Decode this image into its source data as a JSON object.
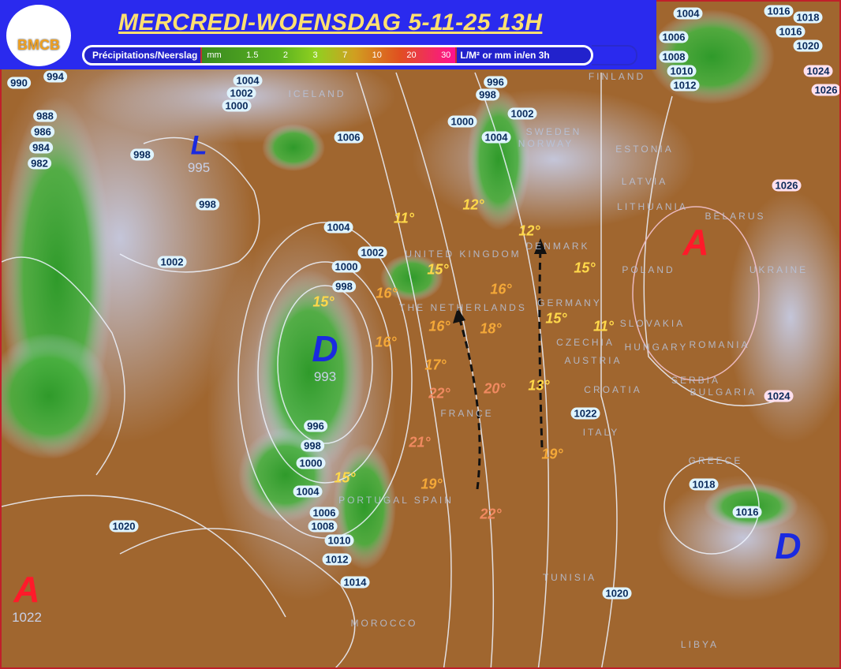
{
  "header": {
    "logo_text": "BMCB",
    "title": "MERCREDI-WOENSDAG  5-11-25  13H"
  },
  "legend": {
    "label": "Précipitations/Neerslag",
    "unit": "mm",
    "ticks": [
      "1.5",
      "2",
      "3",
      "7",
      "10",
      "20",
      "30"
    ],
    "suffix": "L/M² or mm in/en 3h",
    "colors": [
      "#3a8a20",
      "#58b020",
      "#90d020",
      "#d0a020",
      "#e05020",
      "#ff1090"
    ]
  },
  "colors": {
    "land": "#a0662f",
    "precip": "#3aa030",
    "cloud": "#c8d0ec",
    "high": "#ff1a2a",
    "low": "#1a2ae0"
  },
  "isobars": [
    "1004",
    "1002",
    "1000",
    "990",
    "994",
    "998",
    "998",
    "1002",
    "1006",
    "1004",
    "1002",
    "1000",
    "998",
    "996",
    "998",
    "1000",
    "1004",
    "1006",
    "1008",
    "1010",
    "1012",
    "1014",
    "1020",
    "996",
    "998",
    "1000",
    "1002",
    "1004",
    "1004",
    "1006",
    "1008",
    "1010",
    "1012",
    "1016",
    "1016",
    "1018",
    "1020",
    "1024",
    "1026",
    "1026",
    "1024",
    "1022",
    "1018",
    "1016",
    "1020",
    "988",
    "986",
    "984",
    "982"
  ],
  "temperatures": [
    "11°",
    "12°",
    "12°",
    "15°",
    "15°",
    "16°",
    "16°",
    "15°",
    "16°",
    "18°",
    "15°",
    "11°",
    "16°",
    "17°",
    "22°",
    "20°",
    "13°",
    "21°",
    "19°",
    "15°",
    "19°",
    "22°"
  ],
  "countries": [
    "ICELAND",
    "SWEDEN",
    "FINLAND",
    "ESTONIA",
    "LATVIA",
    "LITHUANIA",
    "BELARUS",
    "UKRAINE",
    "UNITED KINGDOM",
    "DENMARK",
    "THE NETHERLANDS",
    "GERMANY",
    "POLAND",
    "CZECHIA",
    "SLOVAKIA",
    "HUNGARY",
    "ROMANIA",
    "AUSTRIA",
    "SERBIA",
    "CROATIA",
    "BULGARIA",
    "FRANCE",
    "ITALY",
    "GREECE",
    "PORTUGAL  SPAIN",
    "TUNISIA",
    "MOROCCO",
    "LIBYA",
    "NORWAY"
  ],
  "pressure_centers": [
    {
      "symbol": "L",
      "value": "995",
      "type": "low"
    },
    {
      "symbol": "D",
      "value": "993",
      "type": "low"
    },
    {
      "symbol": "A",
      "value": "",
      "type": "high"
    },
    {
      "symbol": "A",
      "value": "1022",
      "type": "high"
    },
    {
      "symbol": "D",
      "value": "",
      "type": "low"
    }
  ],
  "arrows": [
    "wind-flow-arrow",
    "wind-flow-arrow"
  ]
}
